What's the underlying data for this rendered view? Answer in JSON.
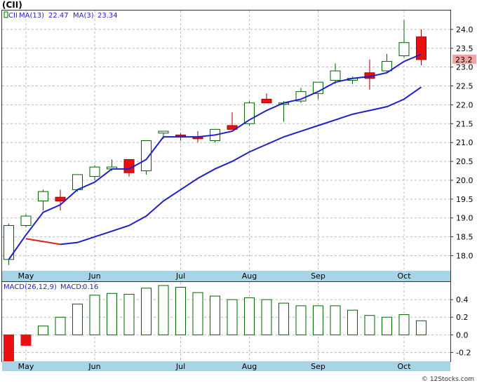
{
  "chart_data": [
    {
      "type": "candlestick",
      "title": "(CII)",
      "legend": {
        "symbol": "CII",
        "ma13_label": "MA(13)",
        "ma13_value": "22.47",
        "ma3_label": "MA(3)",
        "ma3_value": "23.34"
      },
      "ylim": [
        17.6,
        24.5
      ],
      "yticks": [
        "18.0",
        "18.5",
        "19.0",
        "19.5",
        "20.0",
        "20.5",
        "21.0",
        "21.5",
        "22.0",
        "22.5",
        "23.0",
        "23.5",
        "24.0"
      ],
      "last_price": "23.2",
      "candles": [
        {
          "o": 17.9,
          "c": 18.8,
          "h": 18.85,
          "l": 17.75
        },
        {
          "o": 18.8,
          "c": 19.05,
          "h": 19.1,
          "l": 18.75
        },
        {
          "o": 19.45,
          "c": 19.7,
          "h": 19.75,
          "l": 19.2
        },
        {
          "o": 19.55,
          "c": 19.45,
          "h": 19.75,
          "l": 19.2
        },
        {
          "o": 19.75,
          "c": 20.15,
          "h": 20.15,
          "l": 19.7
        },
        {
          "o": 20.1,
          "c": 20.35,
          "h": 20.4,
          "l": 20.0
        },
        {
          "o": 20.3,
          "c": 20.35,
          "h": 20.55,
          "l": 20.25
        },
        {
          "o": 20.55,
          "c": 20.2,
          "h": 20.55,
          "l": 20.1
        },
        {
          "o": 20.25,
          "c": 21.05,
          "h": 21.05,
          "l": 20.15
        },
        {
          "o": 21.25,
          "c": 21.3,
          "h": 21.3,
          "l": 21.1
        },
        {
          "o": 21.2,
          "c": 21.15,
          "h": 21.25,
          "l": 21.05
        },
        {
          "o": 21.15,
          "c": 21.1,
          "h": 21.3,
          "l": 21.0
        },
        {
          "o": 21.05,
          "c": 21.35,
          "h": 21.35,
          "l": 21.0
        },
        {
          "o": 21.45,
          "c": 21.35,
          "h": 21.8,
          "l": 21.35
        },
        {
          "o": 21.5,
          "c": 22.05,
          "h": 22.1,
          "l": 21.45
        },
        {
          "o": 22.15,
          "c": 22.05,
          "h": 22.3,
          "l": 22.05
        },
        {
          "o": 22.05,
          "c": 22.05,
          "h": 22.1,
          "l": 21.55
        },
        {
          "o": 22.1,
          "c": 22.35,
          "h": 22.45,
          "l": 22.05
        },
        {
          "o": 22.3,
          "c": 22.6,
          "h": 22.6,
          "l": 22.15
        },
        {
          "o": 22.65,
          "c": 22.9,
          "h": 23.1,
          "l": 22.55
        },
        {
          "o": 22.65,
          "c": 22.7,
          "h": 22.75,
          "l": 22.55
        },
        {
          "o": 22.85,
          "c": 22.7,
          "h": 23.2,
          "l": 22.4
        },
        {
          "o": 22.9,
          "c": 23.15,
          "h": 23.35,
          "l": 22.85
        },
        {
          "o": 23.3,
          "c": 23.65,
          "h": 24.25,
          "l": 23.25
        },
        {
          "o": 23.8,
          "c": 23.2,
          "h": 24.0,
          "l": 23.05
        }
      ],
      "ma3": [
        17.9,
        18.55,
        19.15,
        19.35,
        19.75,
        19.95,
        20.3,
        20.3,
        20.55,
        21.15,
        21.15,
        21.15,
        21.2,
        21.3,
        21.6,
        21.85,
        22.05,
        22.15,
        22.35,
        22.6,
        22.7,
        22.75,
        22.85,
        23.15,
        23.34
      ],
      "ma13": [
        null,
        18.45,
        null,
        18.3,
        18.35,
        18.5,
        18.65,
        18.8,
        19.05,
        19.45,
        19.75,
        20.05,
        20.3,
        20.5,
        20.75,
        20.95,
        21.15,
        21.3,
        21.45,
        21.6,
        21.75,
        21.85,
        21.95,
        22.15,
        22.47
      ]
    },
    {
      "type": "bar",
      "legend": {
        "macd_params": "MACD(26,12,9)",
        "macd_label": "MACD:",
        "macd_value": "0.16"
      },
      "ylim": [
        -0.3,
        0.6
      ],
      "yticks": [
        "0.4",
        "0.2",
        "0.0",
        "-0.2"
      ],
      "values": [
        -0.32,
        -0.12,
        0.1,
        0.2,
        0.35,
        0.45,
        0.47,
        0.46,
        0.53,
        0.56,
        0.54,
        0.48,
        0.44,
        0.4,
        0.42,
        0.4,
        0.36,
        0.33,
        0.33,
        0.33,
        0.28,
        0.22,
        0.2,
        0.23,
        0.16
      ]
    }
  ],
  "months": [
    "May",
    "Jun",
    "Jul",
    "Aug",
    "Sep",
    "Oct"
  ],
  "colors": {
    "up_fill": "#ffffff",
    "up_stroke": "#006400",
    "down_fill": "#e81010",
    "ma3": "#1f1fc8",
    "ma13_up": "#1f1fc8",
    "ma13_down": "#dd2020",
    "macd_bar": "#006400",
    "macd_neg": "#e81010",
    "axis_band": "#a8d4e8",
    "price_tag": "#f4a3a3"
  },
  "watermark": "© 12Stocks.com"
}
